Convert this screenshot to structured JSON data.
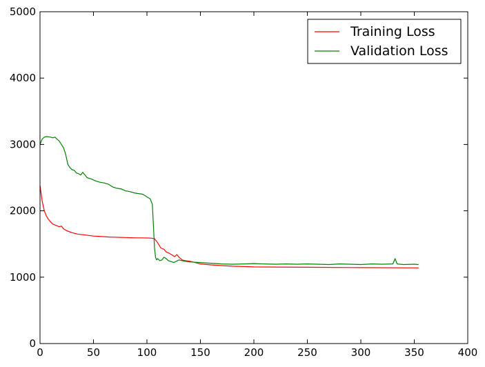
{
  "chart_data": {
    "type": "line",
    "title": "",
    "xlabel": "",
    "ylabel": "",
    "xlim": [
      0,
      400
    ],
    "ylim": [
      0,
      5000
    ],
    "xticks": [
      0,
      50,
      100,
      150,
      200,
      250,
      300,
      350,
      400
    ],
    "yticks": [
      0,
      1000,
      2000,
      3000,
      4000,
      5000
    ],
    "xtick_labels": [
      "0",
      "50",
      "100",
      "150",
      "200",
      "250",
      "300",
      "350",
      "400"
    ],
    "ytick_labels": [
      "0",
      "1000",
      "2000",
      "3000",
      "4000",
      "5000"
    ],
    "grid": false,
    "legend_position": "top-right",
    "series": [
      {
        "name": "Training Loss",
        "color": "#ff0000",
        "x": [
          0,
          2,
          4,
          6,
          8,
          10,
          12,
          15,
          18,
          20,
          22,
          25,
          30,
          35,
          40,
          45,
          50,
          55,
          60,
          65,
          70,
          75,
          80,
          85,
          90,
          95,
          100,
          104,
          107,
          110,
          113,
          116,
          118,
          121,
          124,
          126,
          128,
          130,
          133,
          136,
          140,
          145,
          150,
          160,
          170,
          180,
          200,
          250,
          300,
          354
        ],
        "y": [
          2380,
          2150,
          2000,
          1920,
          1870,
          1830,
          1800,
          1780,
          1760,
          1770,
          1730,
          1700,
          1670,
          1650,
          1640,
          1630,
          1620,
          1615,
          1610,
          1605,
          1603,
          1600,
          1598,
          1595,
          1593,
          1592,
          1590,
          1588,
          1580,
          1520,
          1440,
          1420,
          1380,
          1360,
          1330,
          1310,
          1340,
          1300,
          1260,
          1250,
          1240,
          1220,
          1200,
          1185,
          1175,
          1165,
          1155,
          1150,
          1145,
          1140
        ]
      },
      {
        "name": "Validation Loss",
        "color": "#008000",
        "x": [
          0,
          2,
          4,
          6,
          8,
          10,
          12,
          14,
          16,
          18,
          20,
          22,
          24,
          26,
          28,
          30,
          32,
          34,
          36,
          38,
          40,
          44,
          48,
          52,
          56,
          60,
          64,
          68,
          72,
          76,
          80,
          84,
          88,
          92,
          96,
          100,
          103,
          105,
          106,
          107,
          108,
          109,
          110,
          112,
          114,
          116,
          118,
          120,
          125,
          130,
          135,
          140,
          150,
          160,
          170,
          180,
          190,
          200,
          210,
          220,
          230,
          240,
          250,
          260,
          270,
          280,
          290,
          300,
          310,
          320,
          330,
          332,
          334,
          340,
          350,
          354
        ],
        "y": [
          3000,
          3080,
          3110,
          3120,
          3115,
          3110,
          3100,
          3110,
          3080,
          3050,
          3000,
          2950,
          2850,
          2700,
          2650,
          2620,
          2610,
          2570,
          2560,
          2540,
          2580,
          2500,
          2480,
          2450,
          2430,
          2420,
          2400,
          2360,
          2340,
          2330,
          2300,
          2290,
          2270,
          2260,
          2250,
          2210,
          2180,
          2100,
          1800,
          1450,
          1300,
          1260,
          1280,
          1250,
          1260,
          1300,
          1280,
          1250,
          1220,
          1260,
          1240,
          1230,
          1220,
          1210,
          1200,
          1195,
          1200,
          1205,
          1200,
          1195,
          1200,
          1195,
          1200,
          1195,
          1190,
          1200,
          1195,
          1190,
          1200,
          1195,
          1200,
          1280,
          1200,
          1190,
          1195,
          1190
        ]
      }
    ]
  }
}
